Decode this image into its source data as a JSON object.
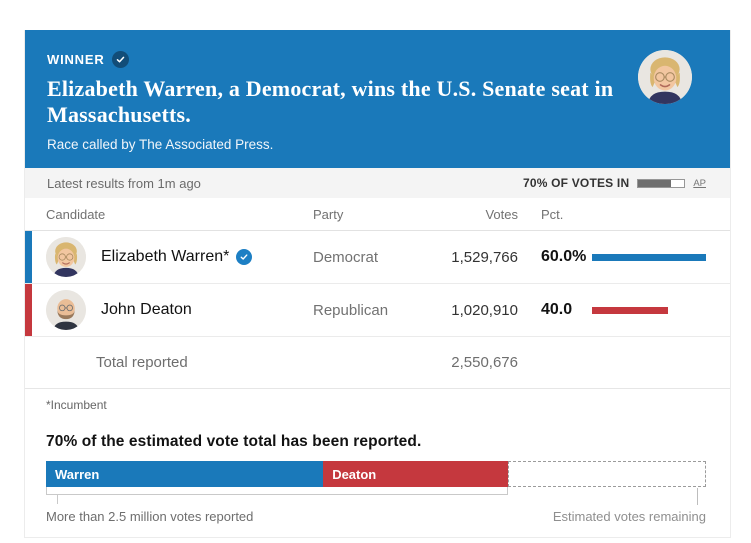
{
  "banner": {
    "winner_label": "WINNER",
    "headline": "Elizabeth Warren, a Democrat, wins the U.S. Senate seat in Massachusetts.",
    "subtext": "Race called by The Associated Press.",
    "background_color": "#1a79ba",
    "badge_color": "#124d78"
  },
  "status_bar": {
    "latest_results": "Latest results from 1m ago",
    "votes_in_label": "70% OF VOTES IN",
    "votes_in_pct": 70,
    "source_label": "AP"
  },
  "results_table": {
    "columns": [
      "Candidate",
      "Party",
      "Votes",
      "Pct."
    ],
    "rows": [
      {
        "name": "Elizabeth Warren*",
        "winner": true,
        "party": "Democrat",
        "votes": "1,529,766",
        "pct": 60.0,
        "pct_label": "60.0%",
        "color": "#1a79ba"
      },
      {
        "name": "John Deaton",
        "winner": false,
        "party": "Republican",
        "votes": "1,020,910",
        "pct": 40.0,
        "pct_label": "40.0",
        "color": "#c5383e"
      }
    ],
    "total_label": "Total reported",
    "total_votes": "2,550,676",
    "footnote": "*Incumbent"
  },
  "reporting_chart": {
    "title": "70% of the estimated vote total has been reported.",
    "reported_pct": 70,
    "segments": [
      {
        "label": "Warren",
        "share": 60,
        "color": "#1a79ba"
      },
      {
        "label": "Deaton",
        "share": 40,
        "color": "#c5383e"
      }
    ],
    "reported_note": "More than 2.5 million votes reported",
    "remaining_note": "Estimated votes remaining"
  },
  "chart_data": {
    "type": "bar",
    "title": "70% of the estimated vote total has been reported.",
    "categories": [
      "Warren (reported)",
      "Deaton (reported)",
      "Estimated votes remaining"
    ],
    "values": [
      42,
      28,
      30
    ],
    "unit": "percent of estimated total vote",
    "series_detail": {
      "candidates": [
        "Elizabeth Warren*",
        "John Deaton"
      ],
      "votes": [
        1529766,
        1020910
      ],
      "pct_of_reported": [
        60.0,
        40.0
      ],
      "total_reported": 2550676,
      "pct_votes_in": 70
    },
    "legend_position": "labels-inside-bar",
    "grid": false
  }
}
